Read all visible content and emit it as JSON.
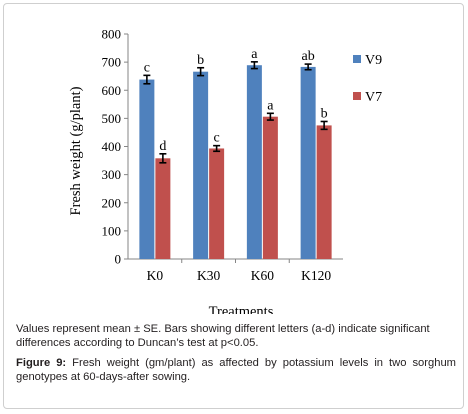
{
  "chart_data": {
    "type": "bar",
    "categories": [
      "K0",
      "K30",
      "K60",
      "K120"
    ],
    "series": [
      {
        "name": "V9",
        "color": "#4f81bd",
        "values": [
          638,
          666,
          689,
          683
        ],
        "errors": [
          15,
          14,
          12,
          10
        ],
        "letters": [
          "c",
          "b",
          "a",
          "ab"
        ]
      },
      {
        "name": "V7",
        "color": "#c0504d",
        "values": [
          358,
          393,
          506,
          475
        ],
        "errors": [
          16,
          10,
          12,
          14
        ],
        "letters": [
          "d",
          "c",
          "a",
          "b"
        ]
      }
    ],
    "xlabel": "Treatments",
    "ylabel": "Fresh weight (g/plant)",
    "ylim": [
      0,
      800
    ],
    "yticks": [
      0,
      100,
      200,
      300,
      400,
      500,
      600,
      700,
      800
    ],
    "grid": false,
    "legend_position": "right"
  },
  "caption": {
    "note": "Values represent mean ± SE. Bars showing different  letters (a-d) indicate significant differences according to Duncan’s test at p<0.05.",
    "figure_label": "Figure 9:",
    "figure_text": " Fresh weight (gm/plant) as affected by potassium levels in two sorghum genotypes at 60-days-after sowing."
  }
}
